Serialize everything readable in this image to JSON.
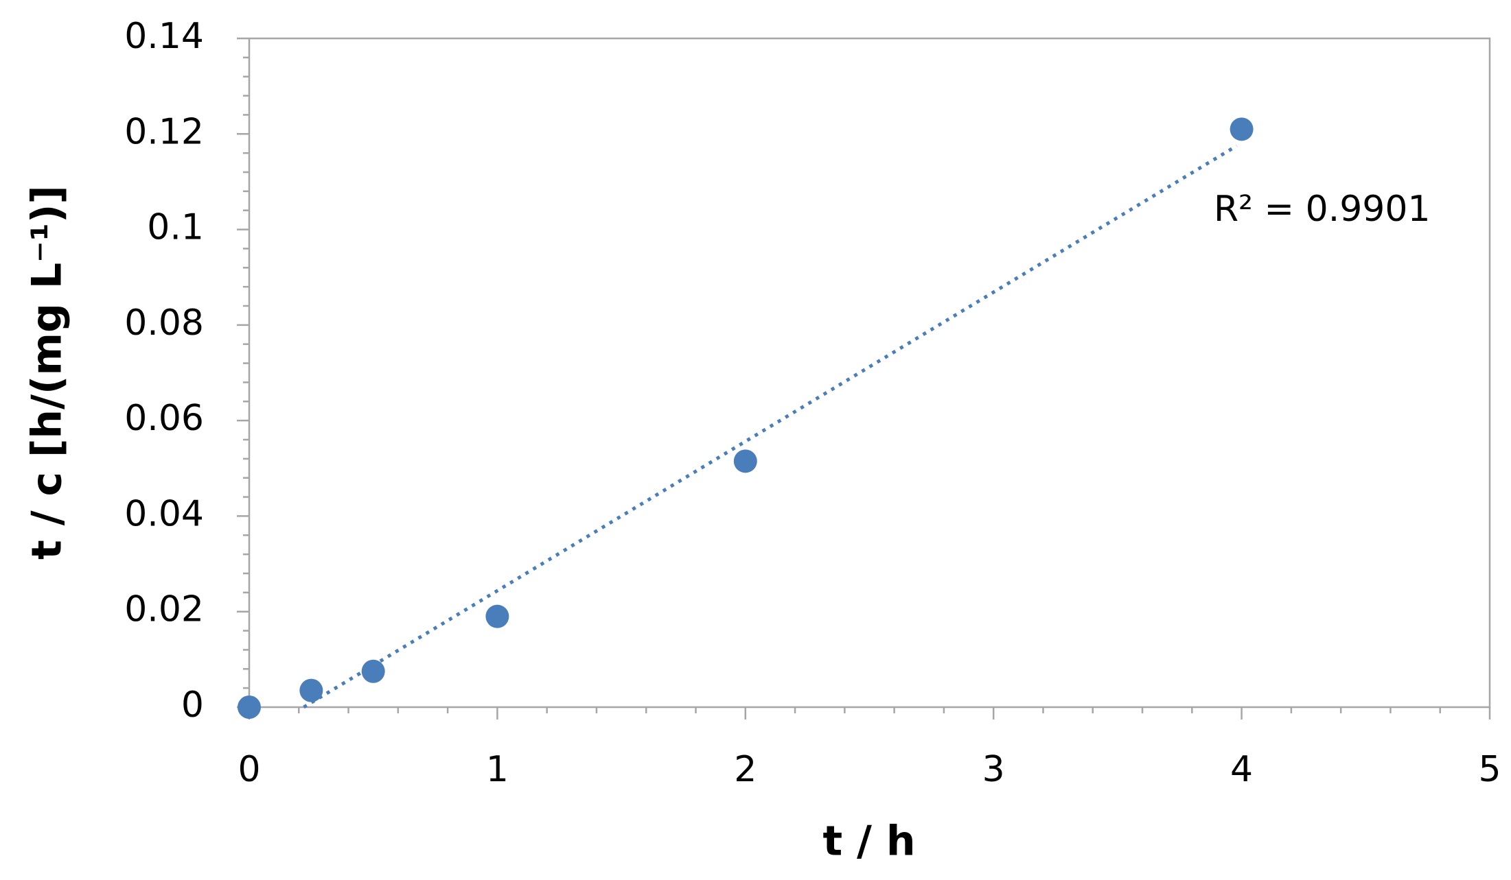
{
  "chart_data": {
    "type": "scatter",
    "x_label": "t / h",
    "y_label": "t / c [h/(mg L⁻¹)]",
    "annotation": "R² = 0.9901",
    "x": [
      0,
      0.25,
      0.5,
      1,
      2,
      4
    ],
    "values": [
      0,
      0.0035,
      0.0075,
      0.019,
      0.0515,
      0.121
    ],
    "color": "#4a7ebb",
    "trendline": {
      "x": [
        0.22,
        3.98
      ],
      "y": [
        0,
        0.1175
      ],
      "style": "dotted"
    },
    "xlim": [
      0,
      5
    ],
    "xticks": [
      0,
      1,
      2,
      3,
      4,
      5
    ],
    "ylim": [
      0,
      0.14
    ],
    "yticks": [
      0,
      0.02,
      0.04,
      0.06,
      0.08,
      0.1,
      0.12,
      0.14
    ],
    "x_minor_divisions": 5,
    "y_minor_divisions": 5,
    "grid": false
  }
}
